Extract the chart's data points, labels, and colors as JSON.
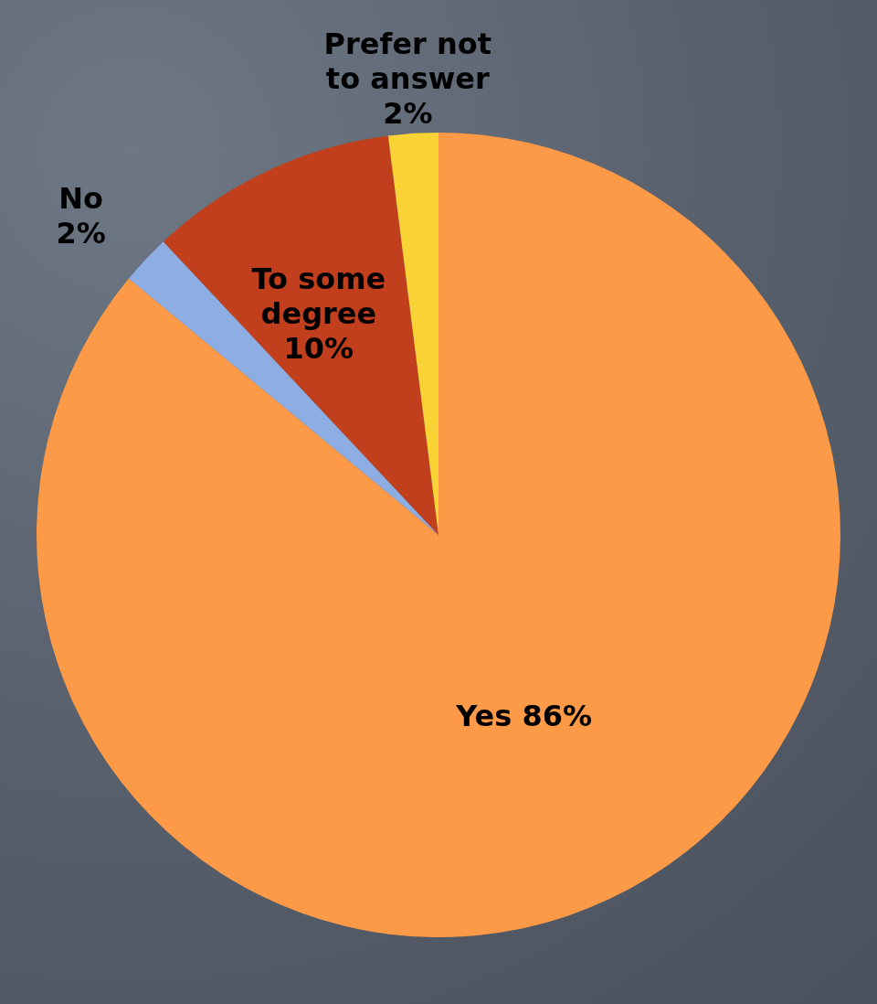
{
  "chart_data": {
    "type": "pie",
    "categories": [
      "Yes",
      "No",
      "To some degree",
      "Prefer not to answer"
    ],
    "values": [
      86,
      2,
      10,
      2
    ],
    "value_labels": [
      "86%",
      "2%",
      "10%",
      "2%"
    ],
    "colors": [
      "#fd9a47",
      "#8eaee3",
      "#c13f1c",
      "#f9d236"
    ]
  }
}
